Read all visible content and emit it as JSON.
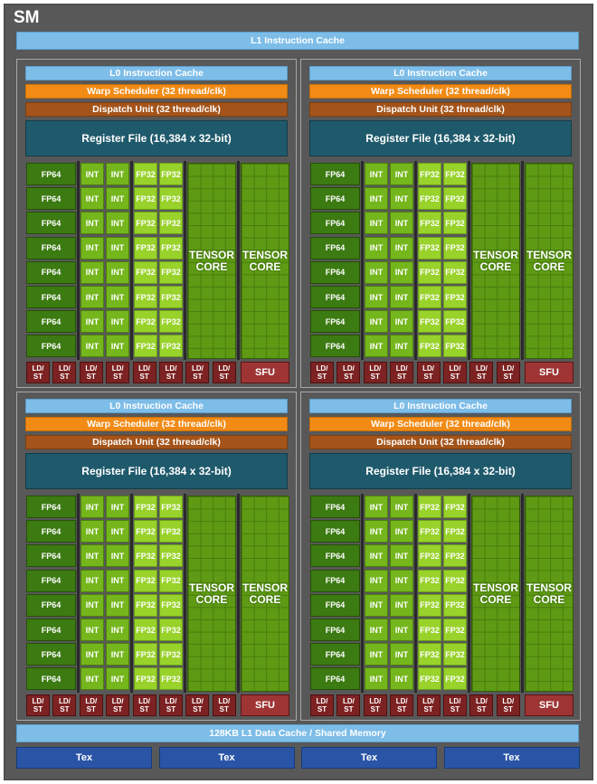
{
  "sm_label": "SM",
  "l1_instruction_cache": "L1 Instruction Cache",
  "processing_block": {
    "l0_instruction_cache": "L0 Instruction Cache",
    "warp_scheduler": "Warp Scheduler (32 thread/clk)",
    "dispatch_unit": "Dispatch Unit (32 thread/clk)",
    "register_file": "Register File (16,384 x 32-bit)",
    "fp64": "FP64",
    "int": "INT",
    "fp32": "FP32",
    "tensor_core": "TENSOR\nCORE",
    "ldst": "LD/\nST",
    "sfu": "SFU"
  },
  "l1_data_cache": "128KB L1 Data Cache / Shared Memory",
  "tex_units": [
    "Tex",
    "Tex",
    "Tex",
    "Tex"
  ],
  "colors": {
    "instruction_cache": "#7dbde8",
    "warp_scheduler": "#f18b16",
    "dispatch_unit": "#a4541a",
    "register_file": "#1f5a6c",
    "fp64": "#3c7a12",
    "int": "#74b61c",
    "fp32": "#98d22a",
    "tensor_core": "#5e9a14",
    "ldst": "#7d2222",
    "sfu": "#9e3434",
    "tex": "#2a55a6"
  }
}
